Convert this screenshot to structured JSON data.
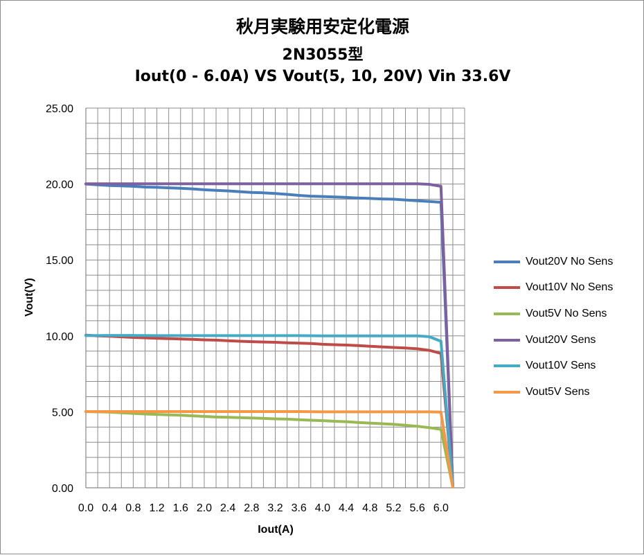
{
  "chart_data": {
    "type": "line",
    "title_lines": [
      "秋月実験用安定化電源",
      "2N3055型",
      "Iout(0 - 6.0A) VS Vout(5, 10, 20V) Vin 33.6V"
    ],
    "xlabel": "Iout(A)",
    "ylabel": "Vout(V)",
    "xlim": [
      0,
      6.4
    ],
    "ylim": [
      0,
      25
    ],
    "x_ticks": [
      "0.0",
      "0.4",
      "0.8",
      "1.2",
      "1.6",
      "2.0",
      "2.4",
      "2.8",
      "3.2",
      "3.6",
      "4.0",
      "4.4",
      "4.8",
      "5.2",
      "5.6",
      "6.0"
    ],
    "y_ticks": [
      "0.00",
      "5.00",
      "10.00",
      "15.00",
      "20.00",
      "25.00"
    ],
    "grid": true,
    "legend_position": "right",
    "series": [
      {
        "name": "Vout20V No Sens",
        "color": "#4a7ebb",
        "x": [
          0,
          0.2,
          0.4,
          0.6,
          0.8,
          1.0,
          1.2,
          1.4,
          1.6,
          1.8,
          2.0,
          2.2,
          2.4,
          2.6,
          2.8,
          3.0,
          3.2,
          3.4,
          3.6,
          3.8,
          4.0,
          4.2,
          4.4,
          4.6,
          4.8,
          5.0,
          5.2,
          5.4,
          5.6,
          5.8,
          6.0,
          6.2
        ],
        "y": [
          20.0,
          19.95,
          19.9,
          19.88,
          19.85,
          19.8,
          19.78,
          19.75,
          19.72,
          19.68,
          19.62,
          19.58,
          19.55,
          19.5,
          19.45,
          19.42,
          19.38,
          19.32,
          19.25,
          19.2,
          19.18,
          19.15,
          19.12,
          19.08,
          19.05,
          19.02,
          19.0,
          18.95,
          18.9,
          18.85,
          18.8,
          0.1
        ]
      },
      {
        "name": "Vout10V No Sens",
        "color": "#be4b48",
        "x": [
          0,
          0.2,
          0.4,
          0.6,
          0.8,
          1.0,
          1.2,
          1.4,
          1.6,
          1.8,
          2.0,
          2.2,
          2.4,
          2.6,
          2.8,
          3.0,
          3.2,
          3.4,
          3.6,
          3.8,
          4.0,
          4.2,
          4.4,
          4.6,
          4.8,
          5.0,
          5.2,
          5.4,
          5.6,
          5.8,
          6.0,
          6.2
        ],
        "y": [
          10.05,
          10.0,
          9.98,
          9.94,
          9.9,
          9.87,
          9.84,
          9.82,
          9.8,
          9.77,
          9.74,
          9.72,
          9.68,
          9.65,
          9.62,
          9.6,
          9.58,
          9.55,
          9.52,
          9.5,
          9.45,
          9.42,
          9.4,
          9.36,
          9.32,
          9.28,
          9.24,
          9.2,
          9.15,
          9.05,
          8.85,
          0.1
        ]
      },
      {
        "name": "Vout5V No Sens",
        "color": "#98b954",
        "x": [
          0,
          0.2,
          0.4,
          0.6,
          0.8,
          1.0,
          1.2,
          1.4,
          1.6,
          1.8,
          2.0,
          2.2,
          2.4,
          2.6,
          2.8,
          3.0,
          3.2,
          3.4,
          3.6,
          3.8,
          4.0,
          4.2,
          4.4,
          4.6,
          4.8,
          5.0,
          5.2,
          5.4,
          5.6,
          5.8,
          6.0,
          6.2
        ],
        "y": [
          5.02,
          5.0,
          4.98,
          4.94,
          4.9,
          4.86,
          4.83,
          4.8,
          4.78,
          4.74,
          4.7,
          4.66,
          4.64,
          4.62,
          4.6,
          4.57,
          4.54,
          4.52,
          4.48,
          4.45,
          4.42,
          4.38,
          4.35,
          4.3,
          4.26,
          4.22,
          4.18,
          4.12,
          4.05,
          3.96,
          3.85,
          0.05
        ]
      },
      {
        "name": "Vout20V Sens",
        "color": "#7d60a0",
        "x": [
          0,
          0.4,
          0.8,
          1.2,
          1.6,
          2.0,
          2.4,
          2.8,
          3.2,
          3.6,
          4.0,
          4.4,
          4.8,
          5.2,
          5.6,
          5.8,
          6.0,
          6.2
        ],
        "y": [
          20.02,
          20.02,
          20.02,
          20.02,
          20.02,
          20.02,
          20.02,
          20.02,
          20.02,
          20.02,
          20.02,
          20.02,
          20.02,
          20.02,
          20.02,
          19.98,
          19.85,
          0.1
        ]
      },
      {
        "name": "Vout10V Sens",
        "color": "#46aac5",
        "x": [
          0,
          0.4,
          0.8,
          1.2,
          1.6,
          2.0,
          2.4,
          2.8,
          3.2,
          3.6,
          4.0,
          4.4,
          4.8,
          5.2,
          5.6,
          5.8,
          6.0,
          6.2
        ],
        "y": [
          10.02,
          10.03,
          10.03,
          10.02,
          10.02,
          10.02,
          10.02,
          10.02,
          10.02,
          10.02,
          10.0,
          10.0,
          10.0,
          10.0,
          10.0,
          9.95,
          9.65,
          0.1
        ]
      },
      {
        "name": "Vout5V Sens",
        "color": "#f49845",
        "x": [
          0,
          0.4,
          0.8,
          1.2,
          1.6,
          2.0,
          2.4,
          2.8,
          3.2,
          3.6,
          4.0,
          4.4,
          4.8,
          5.2,
          5.6,
          5.8,
          6.0,
          6.2
        ],
        "y": [
          5.02,
          5.02,
          5.02,
          5.02,
          5.02,
          5.02,
          5.02,
          5.02,
          5.02,
          5.02,
          5.0,
          5.0,
          5.0,
          5.0,
          5.0,
          5.0,
          4.98,
          0.05
        ]
      }
    ]
  }
}
